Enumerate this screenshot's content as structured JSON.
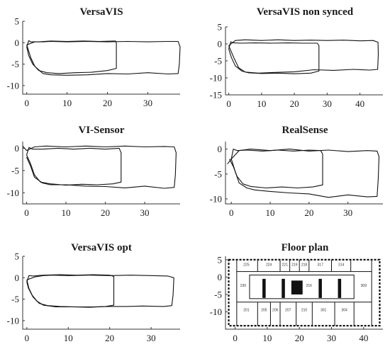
{
  "figure": {
    "background": "#ffffff",
    "line_color": "#111111"
  },
  "chart_data": [
    {
      "type": "line",
      "title": "VersaVIS",
      "xlim": [
        -1,
        38
      ],
      "ylim": [
        -12,
        5
      ],
      "xticks": [
        0,
        10,
        20,
        30
      ],
      "yticks": [
        5,
        0,
        -5,
        -10
      ],
      "series": [
        {
          "x": [
            0,
            0.5,
            1,
            3,
            6,
            10,
            14,
            18,
            22,
            22.2,
            22.2,
            20,
            16,
            12,
            8,
            5,
            3,
            1.5,
            0.5,
            0
          ],
          "y": [
            -1,
            0.5,
            0.2,
            0.2,
            0.4,
            0.3,
            0.4,
            0.3,
            0.4,
            0,
            -6,
            -6.5,
            -6.9,
            -7.0,
            -7.2,
            -7.0,
            -6.5,
            -5,
            -3,
            -1
          ]
        },
        {
          "x": [
            0,
            2,
            4,
            6,
            10,
            15,
            20,
            25,
            30,
            35,
            37.5,
            38,
            37.8,
            37.5,
            35,
            30,
            25,
            20,
            15,
            10,
            6,
            4,
            2,
            1,
            0
          ],
          "y": [
            -0.5,
            0.2,
            0.2,
            0.3,
            0.2,
            0.3,
            0.2,
            0.3,
            0.2,
            0.3,
            0.3,
            -1,
            -5,
            -7.2,
            -7.3,
            -7.0,
            -7.3,
            -7.2,
            -7.5,
            -7.6,
            -7.5,
            -7.2,
            -5.5,
            -3.5,
            -0.5
          ]
        }
      ]
    },
    {
      "type": "line",
      "title": "VersaVIS non synced",
      "xlim": [
        -1,
        47
      ],
      "ylim": [
        -15,
        5
      ],
      "xticks": [
        0,
        10,
        20,
        30,
        40
      ],
      "yticks": [
        5,
        0,
        -5,
        -10,
        -15
      ],
      "series": [
        {
          "x": [
            0,
            0.6,
            1.5,
            4,
            8,
            13,
            18,
            23,
            27,
            27.5,
            27.5,
            25,
            20,
            15,
            10,
            6,
            4,
            2,
            0.8,
            0
          ],
          "y": [
            -1.5,
            0.6,
            0.3,
            0.2,
            0.3,
            0.2,
            0.3,
            0.2,
            0.2,
            -0.5,
            -8,
            -8.6,
            -8.8,
            -8.6,
            -8.7,
            -8.5,
            -8,
            -6.5,
            -4,
            -1.5
          ]
        },
        {
          "x": [
            0,
            2,
            5,
            10,
            15,
            20,
            25,
            30,
            35,
            40,
            44,
            45.5,
            45.6,
            45.4,
            43,
            38,
            32,
            26,
            20,
            14,
            9,
            5,
            3,
            1.5,
            0
          ],
          "y": [
            -0.5,
            1.0,
            1.2,
            1.0,
            1.2,
            1.0,
            1.1,
            1.0,
            1.1,
            0.9,
            1.0,
            0.5,
            -3,
            -7.5,
            -7.7,
            -7.5,
            -7.8,
            -7.6,
            -8.2,
            -8.4,
            -8.6,
            -8.3,
            -7,
            -4,
            -0.5
          ]
        }
      ]
    },
    {
      "type": "line",
      "title": "VI-Sensor",
      "xlim": [
        -1,
        39
      ],
      "ylim": [
        -12.5,
        1.5
      ],
      "xticks": [
        0,
        10,
        20,
        30
      ],
      "yticks": [
        0,
        -5,
        -10
      ],
      "series": [
        {
          "x": [
            0,
            0.6,
            1.5,
            4,
            8,
            12,
            16,
            20,
            23.5,
            24,
            24,
            22,
            18,
            14,
            10,
            6,
            3.5,
            2,
            1,
            0
          ],
          "y": [
            -1.5,
            0.2,
            -0.2,
            -0.2,
            0,
            -0.2,
            0,
            -0.2,
            0,
            -1,
            -7.6,
            -8,
            -8.2,
            -8.1,
            -8.3,
            -8,
            -7.6,
            -6,
            -3.5,
            -1.5
          ]
        },
        {
          "x": [
            -1,
            0,
            2,
            5,
            10,
            15,
            20,
            25,
            30,
            35,
            37.5,
            38,
            37.8,
            37.5,
            35,
            30,
            25,
            20,
            15,
            10,
            6,
            4,
            2,
            1,
            0
          ],
          "y": [
            0.5,
            -0.5,
            0.3,
            0.5,
            0.3,
            0.5,
            0.3,
            0.5,
            0.3,
            0.4,
            0.3,
            -1,
            -6,
            -8.8,
            -9,
            -8.5,
            -8.9,
            -8.6,
            -8.5,
            -8.2,
            -8.2,
            -7.8,
            -6.5,
            -4,
            -2
          ]
        }
      ]
    },
    {
      "type": "line",
      "title": "RealSense",
      "xlim": [
        -1.5,
        39
      ],
      "ylim": [
        -11,
        1.5
      ],
      "xticks": [
        0,
        10,
        20,
        30
      ],
      "yticks": [
        0,
        -5,
        -10
      ],
      "series": [
        {
          "x": [
            0,
            0.5,
            1.5,
            4,
            8,
            12,
            16,
            20,
            23,
            23.5,
            23.5,
            21,
            17,
            13,
            9,
            5,
            3,
            1.5,
            0.5,
            -0.5
          ],
          "y": [
            -2,
            0,
            -0.3,
            -0.2,
            -0.4,
            -0.2,
            -0.4,
            -0.2,
            -0.3,
            -1,
            -7.2,
            -7.6,
            -7.8,
            -7.6,
            -7.8,
            -7.5,
            -7,
            -5.5,
            -3.5,
            -2
          ]
        },
        {
          "x": [
            -1,
            0,
            2,
            5,
            10,
            15,
            20,
            25,
            30,
            35,
            37.5,
            38,
            37.8,
            37.5,
            35,
            30,
            25,
            20,
            15,
            10,
            6,
            4,
            2,
            1,
            0
          ],
          "y": [
            -3,
            -2,
            -0.3,
            0,
            -0.3,
            0,
            -0.4,
            -0.2,
            -0.5,
            -0.3,
            -0.4,
            -1.5,
            -6,
            -9.5,
            -9.6,
            -9.2,
            -9.7,
            -9.0,
            -8.8,
            -8.5,
            -8.2,
            -7.8,
            -6.8,
            -4.5,
            -2
          ]
        }
      ]
    },
    {
      "type": "line",
      "title": "VersaVIS opt",
      "xlim": [
        -1,
        37
      ],
      "ylim": [
        -12,
        5
      ],
      "xticks": [
        0,
        10,
        20,
        30
      ],
      "yticks": [
        5,
        0,
        -5,
        -10
      ],
      "series": [
        {
          "x": [
            0,
            0.5,
            1.5,
            4,
            8,
            12,
            16,
            20,
            21,
            21,
            19,
            15,
            11,
            7,
            4,
            2.5,
            1.2,
            0.4,
            0
          ],
          "y": [
            -1,
            0.5,
            0.4,
            0.6,
            0.7,
            0.6,
            0.7,
            0.6,
            0.3,
            -6.4,
            -6.7,
            -6.9,
            -6.8,
            -6.8,
            -6.4,
            -5.5,
            -4,
            -2.5,
            -1
          ]
        },
        {
          "x": [
            0,
            2,
            4,
            6,
            10,
            15,
            20,
            25,
            30,
            34,
            35.5,
            35.3,
            35,
            33,
            28,
            24,
            20,
            16,
            12,
            8,
            5,
            3,
            1.5,
            0.5,
            0
          ],
          "y": [
            -0.5,
            0.2,
            0.5,
            0.6,
            0.5,
            0.6,
            0.5,
            0.6,
            0.5,
            0.4,
            0,
            -4,
            -6.5,
            -6.7,
            -6.6,
            -6.7,
            -6.7,
            -6.8,
            -6.8,
            -6.7,
            -6.5,
            -6,
            -4.5,
            -2.5,
            -0.5
          ]
        }
      ]
    },
    {
      "type": "table",
      "title": "Floor plan",
      "xlim": [
        -3,
        46
      ],
      "ylim": [
        -15,
        6
      ],
      "xticks": [
        0,
        10,
        20,
        30,
        40
      ],
      "yticks": [
        5,
        0,
        -5,
        -10
      ],
      "rooms_top": [
        "225",
        "224",
        "221",
        "219",
        "218",
        "317",
        "314"
      ],
      "rooms_mid": [
        "230",
        "216",
        "309"
      ],
      "rooms_bottom": [
        "201",
        "205",
        "206",
        "207",
        "210",
        "301",
        "304"
      ]
    }
  ]
}
